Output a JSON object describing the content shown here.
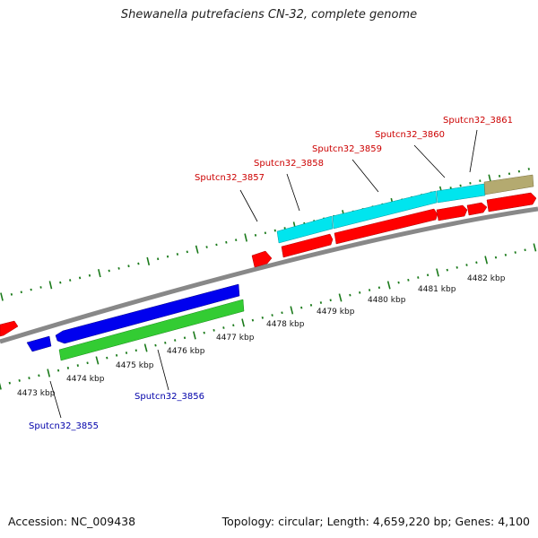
{
  "title": "Shewanella putrefaciens CN-32, complete genome",
  "footer": {
    "accession": "Accession: NC_009438",
    "summary": "Topology: circular; Length: 4,659,220 bp; Genes: 4,100"
  },
  "colors": {
    "forward_cds": "#ff0000",
    "reverse_cds": "#0000ee",
    "forward_rna": "#00e5ee",
    "reverse_rna": "#33cc33",
    "other_feature": "#b4aa70",
    "backbone": "#888888",
    "ticks": "#1a7a1a",
    "forward_label": "#cc0000",
    "reverse_label": "#0000aa"
  },
  "scale_ticks": [
    {
      "label": "4473 kbp"
    },
    {
      "label": "4474 kbp"
    },
    {
      "label": "4475 kbp"
    },
    {
      "label": "4476 kbp"
    },
    {
      "label": "4477 kbp"
    },
    {
      "label": "4478 kbp"
    },
    {
      "label": "4479 kbp"
    },
    {
      "label": "4480 kbp"
    },
    {
      "label": "4481 kbp"
    },
    {
      "label": "4482 kbp"
    }
  ],
  "gene_labels": [
    {
      "text": "Sputcn32_3855",
      "strand": "reverse"
    },
    {
      "text": "Sputcn32_3856",
      "strand": "reverse"
    },
    {
      "text": "Sputcn32_3857",
      "strand": "forward"
    },
    {
      "text": "Sputcn32_3858",
      "strand": "forward"
    },
    {
      "text": "Sputcn32_3859",
      "strand": "forward"
    },
    {
      "text": "Sputcn32_3860",
      "strand": "forward"
    },
    {
      "text": "Sputcn32_3861",
      "strand": "forward"
    }
  ]
}
